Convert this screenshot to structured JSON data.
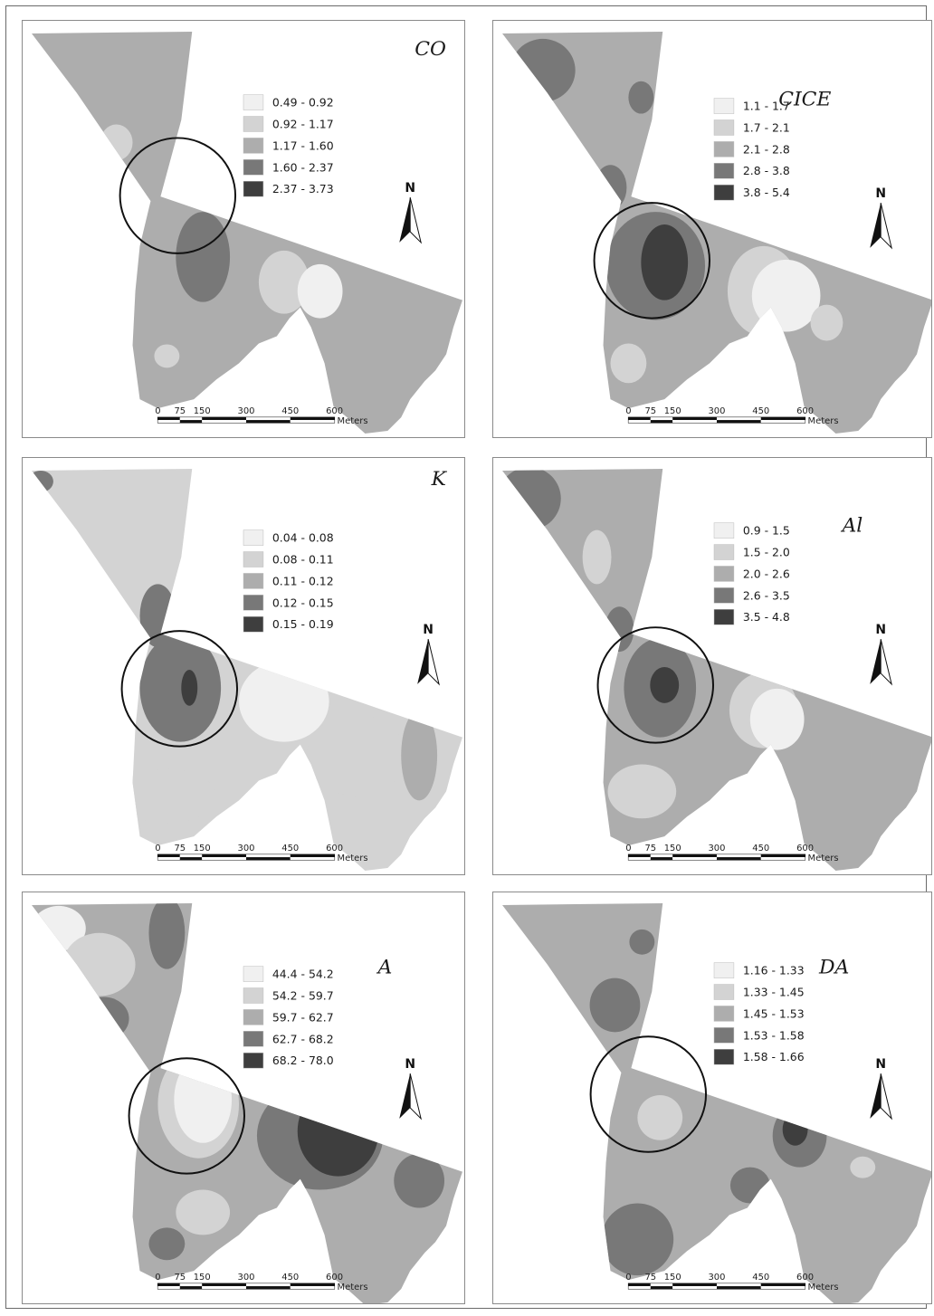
{
  "figure": {
    "colors": {
      "class1": "#f0f0f0",
      "class2": "#d3d3d3",
      "class3": "#adadad",
      "class4": "#787878",
      "class5": "#3e3e3e",
      "circle": "#111111",
      "frame": "#8a8a8a"
    },
    "north_label": "N",
    "north_icon": "north-arrow-icon",
    "scale_bar": {
      "ticks": [
        "0",
        "75",
        "150",
        "300",
        "450",
        "600"
      ],
      "unit": "Meters"
    },
    "panels": [
      {
        "id": "co",
        "variable": "CO",
        "base_class": 3,
        "legend": [
          "0.49 - 0.92",
          "0.92 - 1.17",
          "1.17 - 1.60",
          "1.60 - 2.37",
          "2.37 - 3.73"
        ]
      },
      {
        "id": "cice",
        "variable": "CICE",
        "base_class": 3,
        "legend": [
          "1.1 - 1.7",
          "1.7 - 2.1",
          "2.1 - 2.8",
          "2.8 - 3.8",
          "3.8 - 5.4"
        ]
      },
      {
        "id": "k",
        "variable": "K",
        "base_class": 2,
        "legend": [
          "0.04 - 0.08",
          "0.08 - 0.11",
          "0.11 - 0.12",
          "0.12 - 0.15",
          "0.15 - 0.19"
        ]
      },
      {
        "id": "al",
        "variable": "Al",
        "base_class": 3,
        "legend": [
          "0.9 - 1.5",
          "1.5 - 2.0",
          "2.0 - 2.6",
          "2.6 - 3.5",
          "3.5 - 4.8"
        ]
      },
      {
        "id": "a",
        "variable": "A",
        "base_class": 3,
        "legend": [
          "44.4 - 54.2",
          "54.2 - 59.7",
          "59.7 - 62.7",
          "62.7 - 68.2",
          "68.2 - 78.0"
        ]
      },
      {
        "id": "da",
        "variable": "DA",
        "base_class": 3,
        "legend": [
          "1.16 - 1.33",
          "1.33 - 1.45",
          "1.45 - 1.53",
          "1.53 - 1.58",
          "1.58 - 1.66"
        ]
      }
    ]
  }
}
